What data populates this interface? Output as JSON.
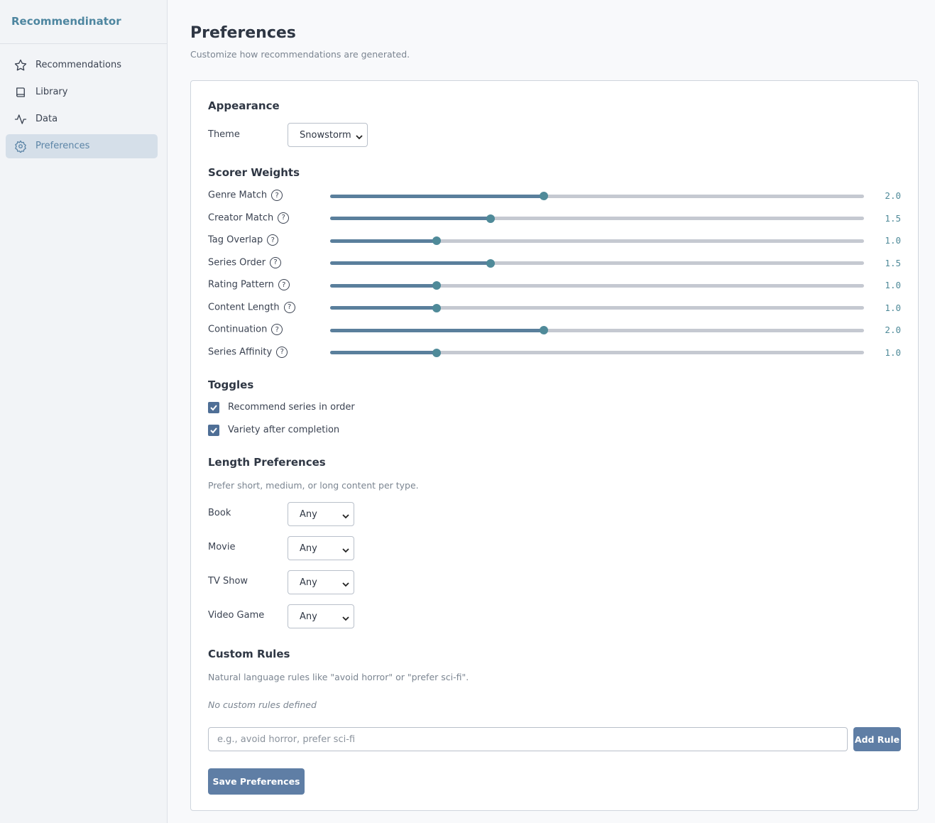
{
  "sidebar": {
    "brand": "Recommendinator",
    "nav": [
      "Recommendations",
      "Library",
      "Data",
      "Preferences"
    ],
    "active": 3
  },
  "header": {
    "title": "Preferences",
    "subtitle": "Customize how recommendations are generated."
  },
  "appearance": {
    "heading": "Appearance",
    "theme_label": "Theme",
    "theme_value": "Snowstorm"
  },
  "scorer_weights": {
    "heading": "Scorer Weights",
    "range": [
      0,
      5
    ],
    "items": [
      {
        "label": "Genre Match",
        "value": 2,
        "value_label": "2.0"
      },
      {
        "label": "Creator Match",
        "value": 1.5,
        "value_label": "1.5"
      },
      {
        "label": "Tag Overlap",
        "value": 1,
        "value_label": "1.0"
      },
      {
        "label": "Series Order",
        "value": 1.5,
        "value_label": "1.5"
      },
      {
        "label": "Rating Pattern",
        "value": 1,
        "value_label": "1.0"
      },
      {
        "label": "Content Length",
        "value": 1,
        "value_label": "1.0"
      },
      {
        "label": "Continuation",
        "value": 2,
        "value_label": "2.0"
      },
      {
        "label": "Series Affinity",
        "value": 1,
        "value_label": "1.0"
      }
    ]
  },
  "toggles": {
    "heading": "Toggles",
    "items": [
      {
        "label": "Recommend series in order",
        "checked": true
      },
      {
        "label": "Variety after completion",
        "checked": true
      }
    ]
  },
  "length_preferences": {
    "heading": "Length Preferences",
    "description": "Prefer short, medium, or long content per type.",
    "items": [
      {
        "label": "Book",
        "value": "Any"
      },
      {
        "label": "Movie",
        "value": "Any"
      },
      {
        "label": "TV Show",
        "value": "Any"
      },
      {
        "label": "Video Game",
        "value": "Any"
      }
    ]
  },
  "custom_rules": {
    "heading": "Custom Rules",
    "description": "Natural language rules like \"avoid horror\" or \"prefer sci-fi\".",
    "empty_message": "No custom rules defined",
    "input_placeholder": "e.g., avoid horror, prefer sci-fi",
    "add_button": "Add Rule"
  },
  "save_button": "Save Preferences"
}
